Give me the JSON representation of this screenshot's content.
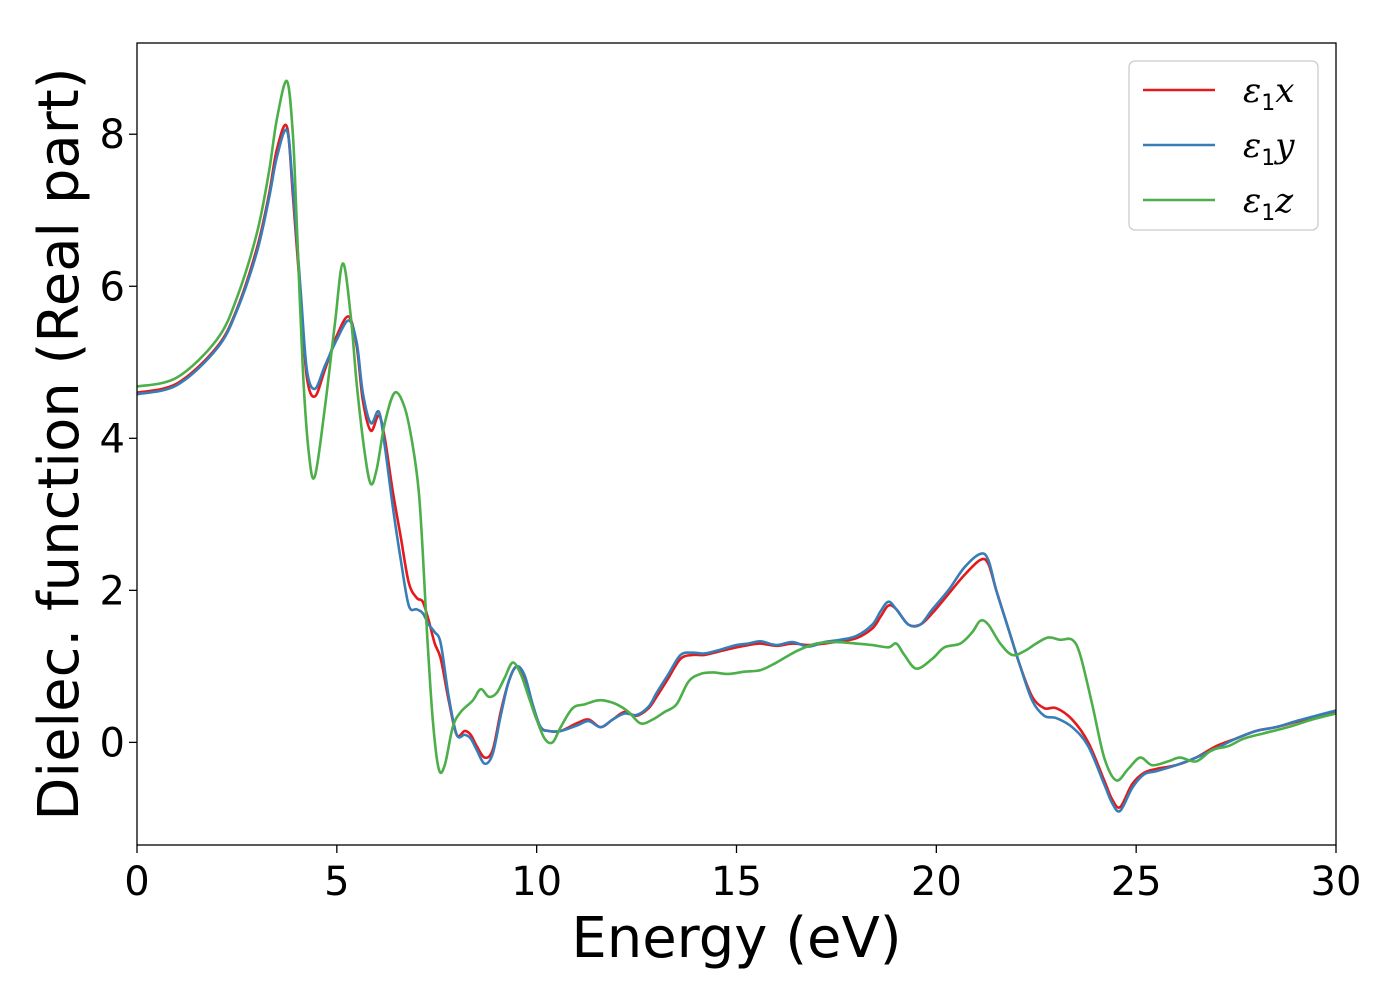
{
  "chart_data": {
    "type": "line",
    "title": "",
    "xlabel": "Energy (eV)",
    "ylabel": "Dielec. function (Real part)",
    "xlim": [
      0,
      30
    ],
    "ylim": [
      -1.35,
      9.2
    ],
    "xticks": [
      0,
      5,
      10,
      15,
      20,
      25,
      30
    ],
    "yticks": [
      0,
      2,
      4,
      6,
      8
    ],
    "grid": false,
    "legend_position": "top-right",
    "series": [
      {
        "name": "ε1x",
        "name_base": "ε",
        "name_sub": "1",
        "name_var": "x",
        "color": "#e41a1c",
        "x": [
          0,
          1,
          2,
          2.5,
          3,
          3.3,
          3.5,
          3.75,
          3.9,
          4.1,
          4.25,
          4.45,
          4.7,
          5.0,
          5.3,
          5.5,
          5.65,
          5.85,
          6.05,
          6.2,
          6.4,
          6.6,
          6.8,
          7.0,
          7.15,
          7.3,
          7.45,
          7.6,
          7.8,
          8.0,
          8.2,
          8.35,
          8.5,
          8.7,
          8.9,
          9.1,
          9.3,
          9.5,
          9.7,
          9.9,
          10.1,
          10.3,
          10.6,
          11.0,
          11.3,
          11.6,
          11.9,
          12.2,
          12.5,
          12.8,
          13.0,
          13.3,
          13.6,
          13.9,
          14.2,
          14.6,
          15.0,
          15.3,
          15.6,
          16.0,
          16.4,
          16.8,
          17.2,
          17.6,
          18.0,
          18.4,
          18.6,
          18.8,
          19.0,
          19.3,
          19.6,
          19.9,
          20.3,
          20.7,
          21.1,
          21.3,
          21.5,
          21.8,
          22.1,
          22.4,
          22.7,
          23.0,
          23.4,
          23.8,
          24.2,
          24.4,
          24.6,
          24.9,
          25.2,
          25.5,
          26.0,
          26.5,
          27.0,
          27.5,
          28.0,
          28.5,
          29.0,
          29.5,
          30.0
        ],
        "values": [
          4.6,
          4.72,
          5.2,
          5.7,
          6.5,
          7.2,
          7.8,
          8.1,
          7.2,
          5.8,
          4.8,
          4.55,
          4.9,
          5.35,
          5.6,
          5.2,
          4.5,
          4.1,
          4.3,
          4.0,
          3.3,
          2.7,
          2.1,
          1.9,
          1.85,
          1.6,
          1.3,
          1.1,
          0.55,
          0.1,
          0.15,
          0.1,
          -0.05,
          -0.2,
          -0.1,
          0.4,
          0.8,
          1.0,
          0.85,
          0.45,
          0.2,
          0.15,
          0.15,
          0.25,
          0.3,
          0.2,
          0.3,
          0.4,
          0.35,
          0.45,
          0.6,
          0.85,
          1.1,
          1.15,
          1.15,
          1.2,
          1.25,
          1.28,
          1.3,
          1.27,
          1.3,
          1.28,
          1.3,
          1.33,
          1.37,
          1.5,
          1.65,
          1.8,
          1.75,
          1.55,
          1.55,
          1.7,
          1.95,
          2.2,
          2.4,
          2.35,
          2.0,
          1.5,
          1.0,
          0.6,
          0.45,
          0.45,
          0.3,
          0.0,
          -0.5,
          -0.75,
          -0.85,
          -0.55,
          -0.4,
          -0.35,
          -0.3,
          -0.2,
          -0.05,
          0.05,
          0.15,
          0.2,
          0.27,
          0.33,
          0.4
        ]
      },
      {
        "name": "ε1y",
        "name_base": "ε",
        "name_sub": "1",
        "name_var": "y",
        "color": "#377eb8",
        "x": [
          0,
          1,
          2,
          2.5,
          3,
          3.3,
          3.5,
          3.75,
          3.9,
          4.1,
          4.25,
          4.45,
          4.7,
          5.0,
          5.3,
          5.5,
          5.65,
          5.85,
          6.05,
          6.2,
          6.4,
          6.6,
          6.8,
          7.0,
          7.15,
          7.3,
          7.45,
          7.6,
          7.8,
          8.0,
          8.2,
          8.35,
          8.5,
          8.7,
          8.9,
          9.1,
          9.3,
          9.5,
          9.7,
          9.9,
          10.1,
          10.3,
          10.6,
          11.0,
          11.3,
          11.6,
          11.9,
          12.2,
          12.5,
          12.8,
          13.0,
          13.3,
          13.6,
          13.9,
          14.2,
          14.6,
          15.0,
          15.3,
          15.6,
          16.0,
          16.4,
          16.8,
          17.2,
          17.6,
          18.0,
          18.4,
          18.6,
          18.8,
          19.0,
          19.3,
          19.6,
          19.9,
          20.3,
          20.7,
          21.1,
          21.3,
          21.5,
          21.8,
          22.1,
          22.4,
          22.7,
          23.0,
          23.4,
          23.8,
          24.2,
          24.4,
          24.6,
          24.9,
          25.2,
          25.5,
          26.0,
          26.5,
          27.0,
          27.5,
          28.0,
          28.5,
          29.0,
          29.5,
          30.0
        ],
        "values": [
          4.58,
          4.7,
          5.18,
          5.68,
          6.45,
          7.15,
          7.7,
          8.05,
          7.3,
          5.9,
          4.9,
          4.65,
          4.95,
          5.3,
          5.55,
          5.25,
          4.6,
          4.2,
          4.35,
          3.9,
          3.1,
          2.4,
          1.8,
          1.75,
          1.7,
          1.55,
          1.45,
          1.3,
          0.6,
          0.1,
          0.1,
          0.05,
          -0.1,
          -0.28,
          -0.15,
          0.35,
          0.8,
          1.0,
          0.88,
          0.5,
          0.2,
          0.15,
          0.15,
          0.22,
          0.28,
          0.2,
          0.3,
          0.38,
          0.36,
          0.47,
          0.65,
          0.9,
          1.15,
          1.18,
          1.17,
          1.22,
          1.28,
          1.3,
          1.33,
          1.28,
          1.32,
          1.26,
          1.32,
          1.35,
          1.4,
          1.55,
          1.72,
          1.85,
          1.75,
          1.55,
          1.55,
          1.75,
          2.0,
          2.3,
          2.48,
          2.4,
          2.0,
          1.5,
          1.0,
          0.55,
          0.35,
          0.32,
          0.2,
          -0.05,
          -0.55,
          -0.8,
          -0.9,
          -0.6,
          -0.42,
          -0.38,
          -0.3,
          -0.2,
          -0.08,
          0.05,
          0.15,
          0.2,
          0.28,
          0.35,
          0.42
        ]
      },
      {
        "name": "ε1z",
        "name_base": "ε",
        "name_sub": "1",
        "name_var": "z",
        "color": "#4daf4a",
        "x": [
          0,
          1,
          2,
          2.5,
          3,
          3.3,
          3.5,
          3.75,
          3.9,
          4.0,
          4.15,
          4.3,
          4.45,
          4.7,
          4.95,
          5.15,
          5.35,
          5.5,
          5.7,
          5.85,
          6.0,
          6.2,
          6.45,
          6.7,
          6.9,
          7.05,
          7.15,
          7.25,
          7.4,
          7.55,
          7.7,
          7.9,
          8.1,
          8.4,
          8.6,
          8.8,
          9.0,
          9.2,
          9.4,
          9.6,
          9.8,
          10.0,
          10.2,
          10.4,
          10.6,
          10.9,
          11.2,
          11.5,
          11.7,
          12.0,
          12.3,
          12.6,
          12.9,
          13.2,
          13.5,
          13.8,
          14.1,
          14.4,
          14.8,
          15.2,
          15.6,
          16.0,
          16.5,
          17.0,
          17.5,
          18.0,
          18.4,
          18.8,
          19.0,
          19.2,
          19.5,
          19.9,
          20.2,
          20.6,
          20.9,
          21.1,
          21.3,
          21.6,
          21.9,
          22.2,
          22.5,
          22.8,
          23.1,
          23.4,
          23.6,
          23.9,
          24.2,
          24.5,
          24.8,
          25.1,
          25.4,
          25.8,
          26.1,
          26.5,
          26.9,
          27.3,
          27.7,
          28.2,
          28.8,
          29.4,
          30.0
        ],
        "values": [
          4.68,
          4.8,
          5.3,
          5.85,
          6.7,
          7.5,
          8.2,
          8.7,
          8.0,
          6.8,
          4.9,
          3.8,
          3.5,
          4.4,
          5.5,
          6.3,
          5.6,
          4.7,
          3.8,
          3.4,
          3.6,
          4.2,
          4.6,
          4.4,
          3.9,
          3.3,
          2.5,
          1.5,
          0.3,
          -0.35,
          -0.3,
          0.2,
          0.4,
          0.55,
          0.7,
          0.6,
          0.65,
          0.85,
          1.05,
          0.9,
          0.6,
          0.3,
          0.05,
          0.0,
          0.2,
          0.45,
          0.5,
          0.55,
          0.55,
          0.5,
          0.4,
          0.25,
          0.3,
          0.4,
          0.5,
          0.8,
          0.9,
          0.92,
          0.9,
          0.93,
          0.95,
          1.05,
          1.2,
          1.3,
          1.32,
          1.3,
          1.28,
          1.25,
          1.3,
          1.15,
          0.97,
          1.1,
          1.25,
          1.3,
          1.45,
          1.6,
          1.55,
          1.3,
          1.15,
          1.2,
          1.3,
          1.38,
          1.35,
          1.35,
          1.15,
          0.5,
          -0.2,
          -0.5,
          -0.35,
          -0.2,
          -0.3,
          -0.25,
          -0.2,
          -0.25,
          -0.1,
          -0.05,
          0.05,
          0.12,
          0.2,
          0.3,
          0.38
        ]
      }
    ]
  }
}
